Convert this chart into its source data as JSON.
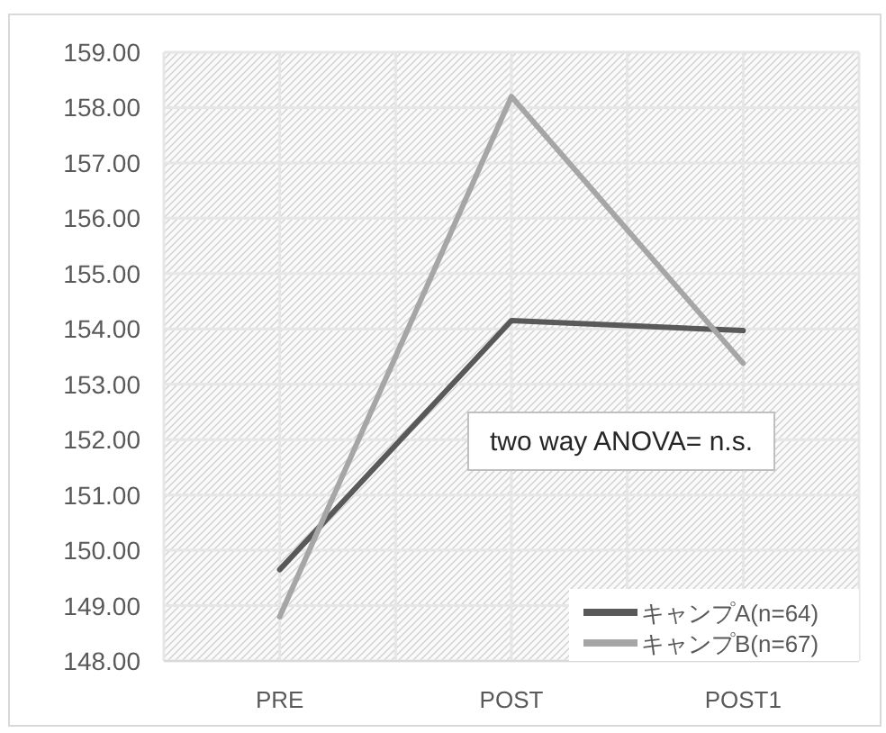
{
  "chart_data": {
    "type": "line",
    "categories": [
      "PRE",
      "POST",
      "POST1"
    ],
    "series": [
      {
        "name": "キャンプA(n=64)",
        "color": "#595959",
        "values": [
          149.65,
          154.15,
          153.97
        ]
      },
      {
        "name": "キャンプB(n=67)",
        "color": "#a6a6a6",
        "values": [
          148.8,
          158.2,
          153.38
        ]
      }
    ],
    "ylim": [
      148,
      159
    ],
    "yticks": [
      {
        "value": 148,
        "label": "148.00"
      },
      {
        "value": 149,
        "label": "149.00"
      },
      {
        "value": 150,
        "label": "150.00"
      },
      {
        "value": 151,
        "label": "151.00"
      },
      {
        "value": 152,
        "label": "152.00"
      },
      {
        "value": 153,
        "label": "153.00"
      },
      {
        "value": 154,
        "label": "154.00"
      },
      {
        "value": 155,
        "label": "155.00"
      },
      {
        "value": 156,
        "label": "156.00"
      },
      {
        "value": 157,
        "label": "157.00"
      },
      {
        "value": 158,
        "label": "158.00"
      },
      {
        "value": 159,
        "label": "159.00"
      }
    ],
    "grid": true,
    "legend": "bottom right",
    "marker": "none",
    "line_style": "solid",
    "annotations": [
      "two way ANOVA= n.s."
    ]
  }
}
